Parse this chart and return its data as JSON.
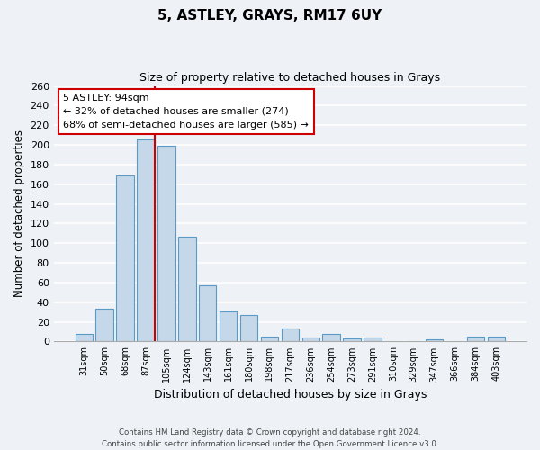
{
  "title": "5, ASTLEY, GRAYS, RM17 6UY",
  "subtitle": "Size of property relative to detached houses in Grays",
  "xlabel": "Distribution of detached houses by size in Grays",
  "ylabel": "Number of detached properties",
  "bin_labels": [
    "31sqm",
    "50sqm",
    "68sqm",
    "87sqm",
    "105sqm",
    "124sqm",
    "143sqm",
    "161sqm",
    "180sqm",
    "198sqm",
    "217sqm",
    "236sqm",
    "254sqm",
    "273sqm",
    "291sqm",
    "310sqm",
    "329sqm",
    "347sqm",
    "366sqm",
    "384sqm",
    "403sqm"
  ],
  "bar_heights": [
    8,
    33,
    169,
    206,
    199,
    107,
    57,
    31,
    27,
    5,
    13,
    4,
    8,
    3,
    4,
    0,
    0,
    2,
    0,
    5,
    5
  ],
  "bar_color": "#c5d8ea",
  "bar_edge_color": "#5a9ac5",
  "vline_color": "#cc0000",
  "annotation_title": "5 ASTLEY: 94sqm",
  "annotation_line1": "← 32% of detached houses are smaller (274)",
  "annotation_line2": "68% of semi-detached houses are larger (585) →",
  "annotation_box_color": "#ffffff",
  "annotation_box_edge": "#cc0000",
  "ylim": [
    0,
    260
  ],
  "yticks": [
    0,
    20,
    40,
    60,
    80,
    100,
    120,
    140,
    160,
    180,
    200,
    220,
    240,
    260
  ],
  "footer_line1": "Contains HM Land Registry data © Crown copyright and database right 2024.",
  "footer_line2": "Contains public sector information licensed under the Open Government Licence v3.0.",
  "bg_color": "#eef2f7",
  "grid_color": "#ffffff"
}
